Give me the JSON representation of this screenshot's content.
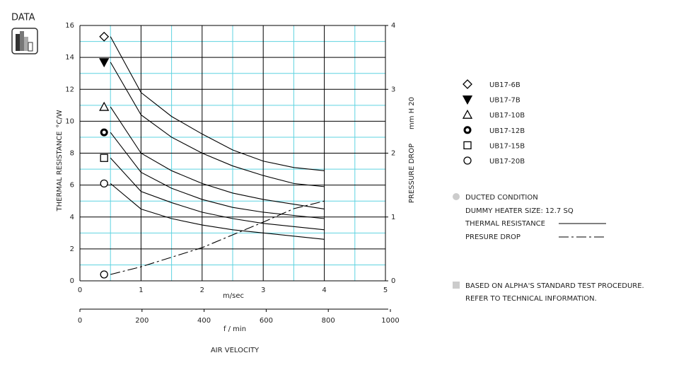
{
  "chart_data": {
    "type": "line",
    "header": "DATA",
    "x": [
      0.5,
      1,
      1.5,
      2,
      2.5,
      3,
      3.5,
      4
    ],
    "xlim": [
      0,
      5
    ],
    "xticks": [
      0,
      1,
      2,
      3,
      4,
      5
    ],
    "xminorticks": [
      0.5,
      1.5,
      2.5,
      3.5,
      4.5
    ],
    "xlabel": "m/sec",
    "x2lim": [
      0,
      1000
    ],
    "x2ticks": [
      0,
      200,
      400,
      600,
      800,
      1000
    ],
    "x2label": "f / min",
    "xtitle": "AIR VELOCITY",
    "ylim": [
      0,
      16
    ],
    "yticks": [
      0,
      2,
      4,
      6,
      8,
      10,
      12,
      14,
      16
    ],
    "yminorticks": [
      1,
      3,
      5,
      7,
      9,
      11,
      13,
      15
    ],
    "ylabel": "THERMAL RESISTANCE",
    "yunit": "°C/W",
    "y2lim": [
      0,
      4
    ],
    "y2ticks": [
      0,
      1,
      2,
      3,
      4
    ],
    "y2label": "PRESSURE DROP",
    "y2unit": "mm H 20",
    "grid": true,
    "grid_color": "#000000",
    "minor_grid_color": "#5fd3e0",
    "series": [
      {
        "name": "UB17-6B",
        "marker": "diamond",
        "color": "#000000",
        "values": [
          15.3,
          11.8,
          10.3,
          9.2,
          8.2,
          7.5,
          7.1,
          6.9
        ]
      },
      {
        "name": "UB17-7B",
        "marker": "triangle-down",
        "color": "#000000",
        "values": [
          13.7,
          10.4,
          9.0,
          8.0,
          7.2,
          6.6,
          6.1,
          5.9
        ]
      },
      {
        "name": "UB17-10B",
        "marker": "triangle-up",
        "color": "#000000",
        "values": [
          10.9,
          8.0,
          6.9,
          6.1,
          5.5,
          5.1,
          4.8,
          4.5
        ]
      },
      {
        "name": "UB17-12B",
        "marker": "bullseye",
        "color": "#000000",
        "values": [
          9.3,
          6.8,
          5.8,
          5.1,
          4.6,
          4.3,
          4.1,
          3.9
        ]
      },
      {
        "name": "UB17-15B",
        "marker": "square",
        "color": "#000000",
        "values": [
          7.7,
          5.6,
          4.9,
          4.3,
          3.9,
          3.6,
          3.4,
          3.2
        ]
      },
      {
        "name": "UB17-20B",
        "marker": "circle",
        "color": "#000000",
        "values": [
          6.1,
          4.5,
          3.9,
          3.5,
          3.2,
          3.0,
          2.8,
          2.6
        ]
      },
      {
        "name": "PRESURE DROP",
        "marker": "circle",
        "color": "#000000",
        "axis": "y2",
        "dash": true,
        "values": [
          0.1,
          0.22,
          0.37,
          0.52,
          0.72,
          0.92,
          1.13,
          1.25
        ]
      }
    ],
    "notes": [
      "DUCTED CONDITION",
      "DUMMY HEATER SIZE: 12.7 SQ"
    ],
    "line_legend": "THERMAL RESISTANCE",
    "footnotes": [
      "BASED ON ALPHA'S STANDARD TEST PROCEDURE.",
      "REFER TO TECHNICAL INFORMATION."
    ]
  }
}
